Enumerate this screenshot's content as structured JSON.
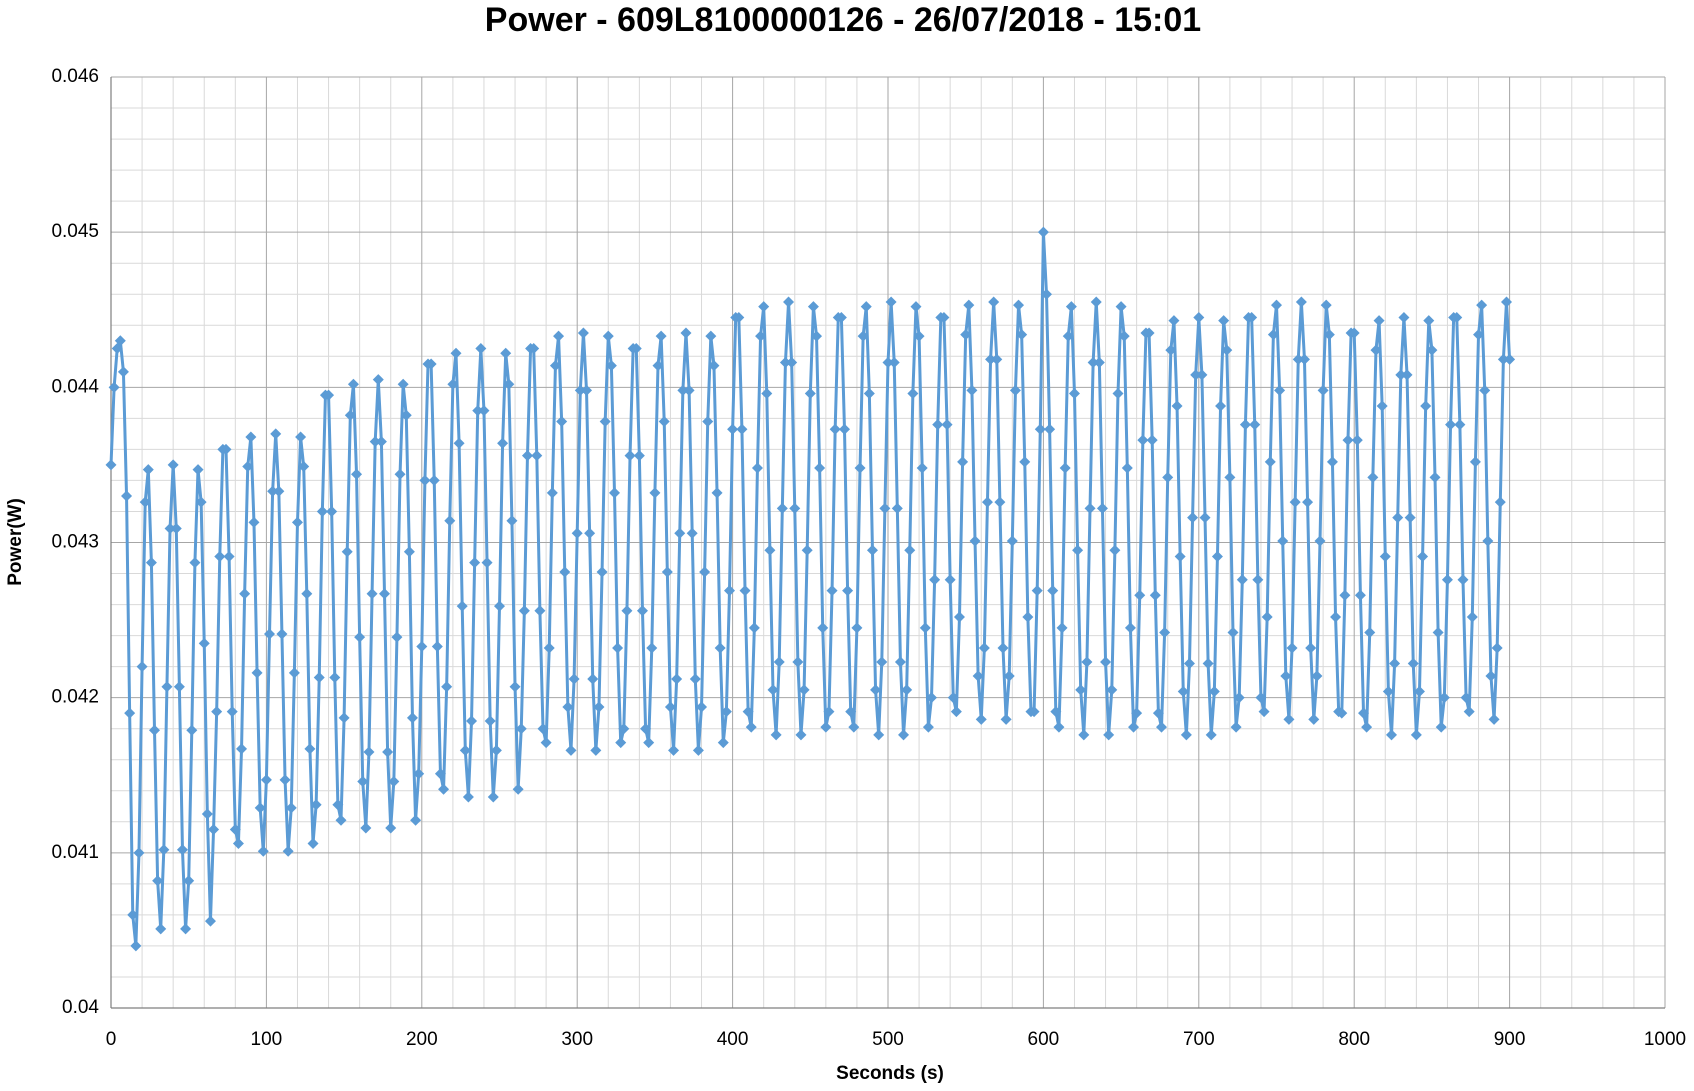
{
  "chart_data": {
    "type": "line",
    "title": "Power - 609L8100000126 - 26/07/2018 - 15:01",
    "x_label": "Seconds (s)",
    "y_label": "Power(W)",
    "color": "#5b9bd5",
    "grid": true,
    "minor_grid_divisions": 5,
    "xlim": [
      0,
      1000
    ],
    "xticks": [
      0,
      100,
      200,
      300,
      400,
      500,
      600,
      700,
      800,
      900,
      1000
    ],
    "ylim": [
      0.04,
      0.046
    ],
    "yticks": [
      0.04,
      0.041,
      0.042,
      0.043,
      0.044,
      0.045,
      0.046
    ],
    "x": [
      0,
      2,
      4,
      6,
      8,
      10,
      12,
      14,
      16,
      18,
      20,
      22,
      24,
      26,
      28,
      30,
      32,
      34,
      36,
      38,
      40,
      42,
      44,
      46,
      48,
      50,
      52,
      54,
      56,
      58,
      60,
      62,
      64,
      66,
      68,
      70,
      72,
      74,
      76,
      78,
      80,
      82,
      84,
      86,
      88,
      90,
      92,
      94,
      96,
      98,
      100,
      102,
      104,
      106,
      108,
      110,
      112,
      114,
      116,
      118,
      120,
      122,
      124,
      126,
      128,
      130,
      132,
      134,
      136,
      138,
      140,
      142,
      144,
      146,
      148,
      150,
      152,
      154,
      156,
      158,
      160,
      162,
      164,
      166,
      168,
      170,
      172,
      174,
      176,
      178,
      180,
      182,
      184,
      186,
      188,
      190,
      192,
      194,
      196,
      198,
      200,
      202,
      204,
      206,
      208,
      210,
      212,
      214,
      216,
      218,
      220,
      222,
      224,
      226,
      228,
      230,
      232,
      234,
      236,
      238,
      240,
      242,
      244,
      246,
      248,
      250,
      252,
      254,
      256,
      258,
      260,
      262,
      264,
      266,
      268,
      270,
      272,
      274,
      276,
      278,
      280,
      282,
      284,
      286,
      288,
      290,
      292,
      294,
      296,
      298,
      300,
      302,
      304,
      306,
      308,
      310,
      312,
      314,
      316,
      318,
      320,
      322,
      324,
      326,
      328,
      330,
      332,
      334,
      336,
      338,
      340,
      342,
      344,
      346,
      348,
      350,
      352,
      354,
      356,
      358,
      360,
      362,
      364,
      366,
      368,
      370,
      372,
      374,
      376,
      378,
      380,
      382,
      384,
      386,
      388,
      390,
      392,
      394,
      396,
      398,
      400,
      402,
      404,
      406,
      408,
      410,
      412,
      414,
      416,
      418,
      420,
      422,
      424,
      426,
      428,
      430,
      432,
      434,
      436,
      438,
      440,
      442,
      444,
      446,
      448,
      450,
      452,
      454,
      456,
      458,
      460,
      462,
      464,
      466,
      468,
      470,
      472,
      474,
      476,
      478,
      480,
      482,
      484,
      486,
      488,
      490,
      492,
      494,
      496,
      498,
      500,
      502,
      504,
      506,
      508,
      510,
      512,
      514,
      516,
      518,
      520,
      522,
      524,
      526,
      528,
      530,
      532,
      534,
      536,
      538,
      540,
      542,
      544,
      546,
      548,
      550,
      552,
      554,
      556,
      558,
      560,
      562,
      564,
      566,
      568,
      570,
      572,
      574,
      576,
      578,
      580,
      582,
      584,
      586,
      588,
      590,
      592,
      594,
      596,
      598,
      600,
      602,
      604,
      606,
      608,
      610,
      612,
      614,
      616,
      618,
      620,
      622,
      624,
      626,
      628,
      630,
      632,
      634,
      636,
      638,
      640,
      642,
      644,
      646,
      648,
      650,
      652,
      654,
      656,
      658,
      660,
      662,
      664,
      666,
      668,
      670,
      672,
      674,
      676,
      678,
      680,
      682,
      684,
      686,
      688,
      690,
      692,
      694,
      696,
      698,
      700,
      702,
      704,
      706,
      708,
      710,
      712,
      714,
      716,
      718,
      720,
      722,
      724,
      726,
      728,
      730,
      732,
      734,
      736,
      738,
      740,
      742,
      744,
      746,
      748,
      750,
      752,
      754,
      756,
      758,
      760,
      762,
      764,
      766,
      768,
      770,
      772,
      774,
      776,
      778,
      780,
      782,
      784,
      786,
      788,
      790,
      792,
      794,
      796,
      798,
      800,
      802,
      804,
      806,
      808,
      810,
      812,
      814,
      816,
      818,
      820,
      822,
      824,
      826,
      828,
      830,
      832,
      834,
      836,
      838,
      840,
      842,
      844,
      846,
      848,
      850,
      852,
      854,
      856,
      858,
      860,
      862,
      864,
      866,
      868,
      870,
      872,
      874,
      876,
      878,
      880,
      882,
      884,
      886,
      888,
      890,
      892,
      894,
      896,
      898,
      900
    ],
    "values": [
      0.0435,
      0.044,
      0.04425,
      0.0443,
      0.0441,
      0.0433,
      0.0419,
      0.0406,
      0.0404,
      0.041,
      0.0422,
      0.04326,
      0.04347,
      0.04287,
      0.04179,
      0.04082,
      0.04051,
      0.04102,
      0.04207,
      0.04309,
      0.0435,
      0.04309,
      0.04207,
      0.04102,
      0.04051,
      0.04082,
      0.04179,
      0.04287,
      0.04347,
      0.04326,
      0.04235,
      0.04125,
      0.04056,
      0.04115,
      0.04191,
      0.04291,
      0.0436,
      0.0436,
      0.04291,
      0.04191,
      0.04115,
      0.04106,
      0.04167,
      0.04267,
      0.04349,
      0.04368,
      0.04313,
      0.04216,
      0.04129,
      0.04101,
      0.04147,
      0.04241,
      0.04333,
      0.0437,
      0.04333,
      0.04241,
      0.04147,
      0.04101,
      0.04129,
      0.04216,
      0.04313,
      0.04368,
      0.04349,
      0.04267,
      0.04167,
      0.04106,
      0.04131,
      0.04213,
      0.0432,
      0.04395,
      0.04395,
      0.0432,
      0.04213,
      0.04131,
      0.04121,
      0.04187,
      0.04294,
      0.04382,
      0.04402,
      0.04344,
      0.04239,
      0.04146,
      0.04116,
      0.04165,
      0.04267,
      0.04365,
      0.04405,
      0.04365,
      0.04267,
      0.04165,
      0.04116,
      0.04146,
      0.04239,
      0.04344,
      0.04402,
      0.04382,
      0.04294,
      0.04187,
      0.04121,
      0.04151,
      0.04233,
      0.0434,
      0.04415,
      0.04415,
      0.0434,
      0.04233,
      0.04151,
      0.04141,
      0.04207,
      0.04314,
      0.04402,
      0.04422,
      0.04364,
      0.04259,
      0.04166,
      0.04136,
      0.04185,
      0.04287,
      0.04385,
      0.04425,
      0.04385,
      0.04287,
      0.04185,
      0.04136,
      0.04166,
      0.04259,
      0.04364,
      0.04422,
      0.04402,
      0.04314,
      0.04207,
      0.04141,
      0.0418,
      0.04256,
      0.04356,
      0.04425,
      0.04425,
      0.04356,
      0.04256,
      0.0418,
      0.04171,
      0.04232,
      0.04332,
      0.04414,
      0.04433,
      0.04378,
      0.04281,
      0.04194,
      0.04166,
      0.04212,
      0.04306,
      0.04398,
      0.04435,
      0.04398,
      0.04306,
      0.04212,
      0.04166,
      0.04194,
      0.04281,
      0.04378,
      0.04433,
      0.04414,
      0.04332,
      0.04232,
      0.04171,
      0.0418,
      0.04256,
      0.04356,
      0.04425,
      0.04425,
      0.04356,
      0.04256,
      0.0418,
      0.04171,
      0.04232,
      0.04332,
      0.04414,
      0.04433,
      0.04378,
      0.04281,
      0.04194,
      0.04166,
      0.04212,
      0.04306,
      0.04398,
      0.04435,
      0.04398,
      0.04306,
      0.04212,
      0.04166,
      0.04194,
      0.04281,
      0.04378,
      0.04433,
      0.04414,
      0.04332,
      0.04232,
      0.04171,
      0.04191,
      0.04269,
      0.04373,
      0.04445,
      0.04445,
      0.04373,
      0.04269,
      0.04191,
      0.04181,
      0.04245,
      0.04348,
      0.04433,
      0.04452,
      0.04396,
      0.04295,
      0.04205,
      0.04176,
      0.04223,
      0.04322,
      0.04416,
      0.04455,
      0.04416,
      0.04322,
      0.04223,
      0.04176,
      0.04205,
      0.04295,
      0.04396,
      0.04452,
      0.04433,
      0.04348,
      0.04245,
      0.04181,
      0.04191,
      0.04269,
      0.04373,
      0.04445,
      0.04445,
      0.04373,
      0.04269,
      0.04191,
      0.04181,
      0.04245,
      0.04348,
      0.04433,
      0.04452,
      0.04396,
      0.04295,
      0.04205,
      0.04176,
      0.04223,
      0.04322,
      0.04416,
      0.04455,
      0.04416,
      0.04322,
      0.04223,
      0.04176,
      0.04205,
      0.04295,
      0.04396,
      0.04452,
      0.04433,
      0.04348,
      0.04245,
      0.04181,
      0.042,
      0.04276,
      0.04376,
      0.04445,
      0.04445,
      0.04376,
      0.04276,
      0.042,
      0.04191,
      0.04252,
      0.04352,
      0.04434,
      0.04453,
      0.04398,
      0.04301,
      0.04214,
      0.04186,
      0.04232,
      0.04326,
      0.04418,
      0.04455,
      0.04418,
      0.04326,
      0.04232,
      0.04186,
      0.04214,
      0.04301,
      0.04398,
      0.04453,
      0.04434,
      0.04352,
      0.04252,
      0.04191,
      0.04191,
      0.04269,
      0.04373,
      0.045,
      0.0446,
      0.04373,
      0.04269,
      0.04191,
      0.04181,
      0.04245,
      0.04348,
      0.04433,
      0.04452,
      0.04396,
      0.04295,
      0.04205,
      0.04176,
      0.04223,
      0.04322,
      0.04416,
      0.04455,
      0.04416,
      0.04322,
      0.04223,
      0.04176,
      0.04205,
      0.04295,
      0.04396,
      0.04452,
      0.04433,
      0.04348,
      0.04245,
      0.04181,
      0.0419,
      0.04266,
      0.04366,
      0.04435,
      0.04435,
      0.04366,
      0.04266,
      0.0419,
      0.04181,
      0.04242,
      0.04342,
      0.04424,
      0.04443,
      0.04388,
      0.04291,
      0.04204,
      0.04176,
      0.04222,
      0.04316,
      0.04408,
      0.04445,
      0.04408,
      0.04316,
      0.04222,
      0.04176,
      0.04204,
      0.04291,
      0.04388,
      0.04443,
      0.04424,
      0.04342,
      0.04242,
      0.04181,
      0.042,
      0.04276,
      0.04376,
      0.04445,
      0.04445,
      0.04376,
      0.04276,
      0.042,
      0.04191,
      0.04252,
      0.04352,
      0.04434,
      0.04453,
      0.04398,
      0.04301,
      0.04214,
      0.04186,
      0.04232,
      0.04326,
      0.04418,
      0.04455,
      0.04418,
      0.04326,
      0.04232,
      0.04186,
      0.04214,
      0.04301,
      0.04398,
      0.04453,
      0.04434,
      0.04352,
      0.04252,
      0.04191,
      0.0419,
      0.04266,
      0.04366,
      0.04435,
      0.04435,
      0.04366,
      0.04266,
      0.0419,
      0.04181,
      0.04242,
      0.04342,
      0.04424,
      0.04443,
      0.04388,
      0.04291,
      0.04204,
      0.04176,
      0.04222,
      0.04316,
      0.04408,
      0.04445,
      0.04408,
      0.04316,
      0.04222,
      0.04176,
      0.04204,
      0.04291,
      0.04388,
      0.04443,
      0.04424,
      0.04342,
      0.04242,
      0.04181,
      0.042,
      0.04276,
      0.04376,
      0.04445,
      0.04445,
      0.04376,
      0.04276,
      0.042,
      0.04191,
      0.04252,
      0.04352,
      0.04434,
      0.04453,
      0.04398,
      0.04301,
      0.04214,
      0.04186,
      0.04232,
      0.04326,
      0.04418,
      0.04455,
      0.04418
    ]
  }
}
